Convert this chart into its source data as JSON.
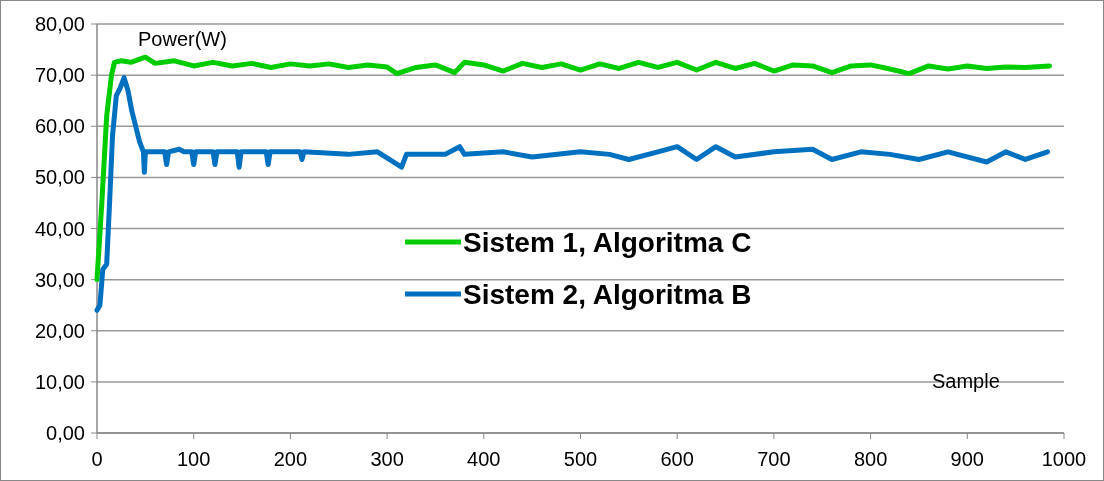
{
  "chart_data": {
    "type": "line",
    "xlabel": "Sample",
    "ylabel": "Power(W)",
    "xlim": [
      0,
      1000
    ],
    "xticks": [
      0,
      100,
      200,
      300,
      400,
      500,
      600,
      700,
      800,
      900,
      1000
    ],
    "ylim": [
      0,
      80
    ],
    "yticks": [
      {
        "value": 0,
        "label": "0,00"
      },
      {
        "value": 10,
        "label": "10,00"
      },
      {
        "value": 20,
        "label": "20,00"
      },
      {
        "value": 30,
        "label": "30,00"
      },
      {
        "value": 40,
        "label": "40,00"
      },
      {
        "value": 50,
        "label": "50,00"
      },
      {
        "value": 60,
        "label": "60,00"
      },
      {
        "value": 70,
        "label": "70,00"
      },
      {
        "value": 80,
        "label": "80,00"
      }
    ],
    "grid": "y",
    "legend": "center",
    "marker": "none",
    "line_style": "solid",
    "series": [
      {
        "name": "Sistem 1, Algoritma C",
        "color": "#00cc00",
        "x": [
          0,
          5,
          10,
          15,
          18,
          25,
          35,
          50,
          60,
          80,
          100,
          120,
          140,
          160,
          180,
          200,
          220,
          240,
          260,
          280,
          300,
          310,
          330,
          350,
          370,
          380,
          400,
          420,
          440,
          460,
          480,
          500,
          520,
          540,
          560,
          580,
          600,
          620,
          640,
          660,
          680,
          700,
          720,
          740,
          760,
          780,
          800,
          820,
          840,
          860,
          880,
          900,
          920,
          940,
          960,
          985
        ],
        "values": [
          30,
          45,
          62,
          70,
          72.5,
          72.8,
          72.5,
          73.5,
          72.3,
          72.8,
          71.8,
          72.5,
          71.8,
          72.3,
          71.5,
          72.2,
          71.8,
          72.2,
          71.5,
          72,
          71.6,
          70.3,
          71.5,
          72,
          70.5,
          72.5,
          72,
          70.8,
          72.3,
          71.5,
          72.2,
          71,
          72.2,
          71.3,
          72.5,
          71.5,
          72.5,
          71,
          72.5,
          71.3,
          72.3,
          70.8,
          72,
          71.8,
          70.5,
          71.8,
          72,
          71.2,
          70.3,
          71.8,
          71.2,
          71.8,
          71.3,
          71.6,
          71.5,
          71.8
        ]
      },
      {
        "name": "Sistem 2, Algoritma B",
        "color": "#0070c0",
        "x": [
          0,
          3,
          6,
          10,
          13,
          16,
          20,
          24,
          28,
          32,
          36,
          40,
          44,
          48,
          49,
          50,
          70,
          72,
          74,
          85,
          90,
          98,
          100,
          102,
          120,
          122,
          124,
          145,
          147,
          149,
          175,
          177,
          179,
          210,
          212,
          214,
          260,
          290,
          315,
          320,
          360,
          375,
          380,
          420,
          450,
          500,
          530,
          550,
          580,
          600,
          620,
          640,
          660,
          700,
          740,
          760,
          790,
          820,
          850,
          880,
          920,
          940,
          960,
          983
        ],
        "values": [
          24,
          25,
          32,
          33,
          45,
          58,
          66,
          67.5,
          69.5,
          67,
          63,
          60,
          57,
          55,
          51,
          55,
          55,
          52.5,
          55,
          55.5,
          55,
          55,
          52.5,
          55,
          55,
          52.5,
          55,
          55,
          52,
          55,
          55,
          52.5,
          55,
          55,
          53.5,
          55,
          54.5,
          55,
          52,
          54.5,
          54.5,
          56,
          54.5,
          55,
          54,
          55,
          54.5,
          53.5,
          55,
          56,
          53.5,
          56,
          54,
          55,
          55.5,
          53.5,
          55,
          54.5,
          53.5,
          55,
          53,
          55,
          53.5,
          55
        ]
      }
    ]
  }
}
